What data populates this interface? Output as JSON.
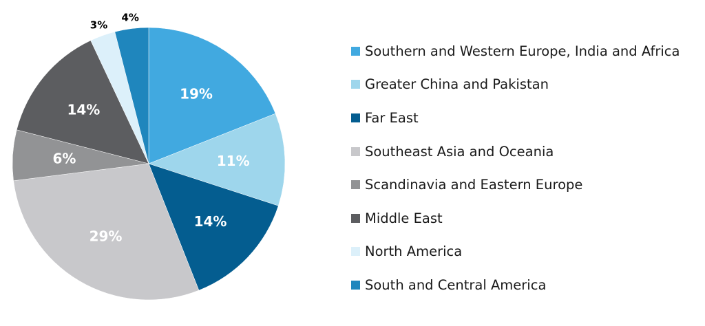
{
  "chart_data": {
    "type": "pie",
    "title": "",
    "start_angle_deg": 0,
    "direction": "clockwise",
    "legend_position": "right",
    "series": [
      {
        "name": "Southern and Western Europe, India and Africa",
        "value": 19,
        "label": "19%",
        "color": "#41a9e0",
        "label_color": "#ffffff"
      },
      {
        "name": "Greater China and Pakistan",
        "value": 11,
        "label": "11%",
        "color": "#9ed6ec",
        "label_color": "#ffffff"
      },
      {
        "name": "Far East",
        "value": 14,
        "label": "14%",
        "color": "#045d90",
        "label_color": "#ffffff"
      },
      {
        "name": "Southeast Asia and Oceania",
        "value": 29,
        "label": "29%",
        "color": "#c8c8cb",
        "label_color": "#ffffff"
      },
      {
        "name": "Scandinavia and Eastern Europe",
        "value": 6,
        "label": "6%",
        "color": "#929395",
        "label_color": "#ffffff"
      },
      {
        "name": "Middle East",
        "value": 14,
        "label": "14%",
        "color": "#5c5d60",
        "label_color": "#ffffff"
      },
      {
        "name": "North America",
        "value": 3,
        "label": "3%",
        "color": "#dcf0fa",
        "label_color": "#000000",
        "label_outside": true
      },
      {
        "name": "South and Central America",
        "value": 4,
        "label": "4%",
        "color": "#1f86bd",
        "label_color": "#000000",
        "label_outside": true
      }
    ]
  }
}
